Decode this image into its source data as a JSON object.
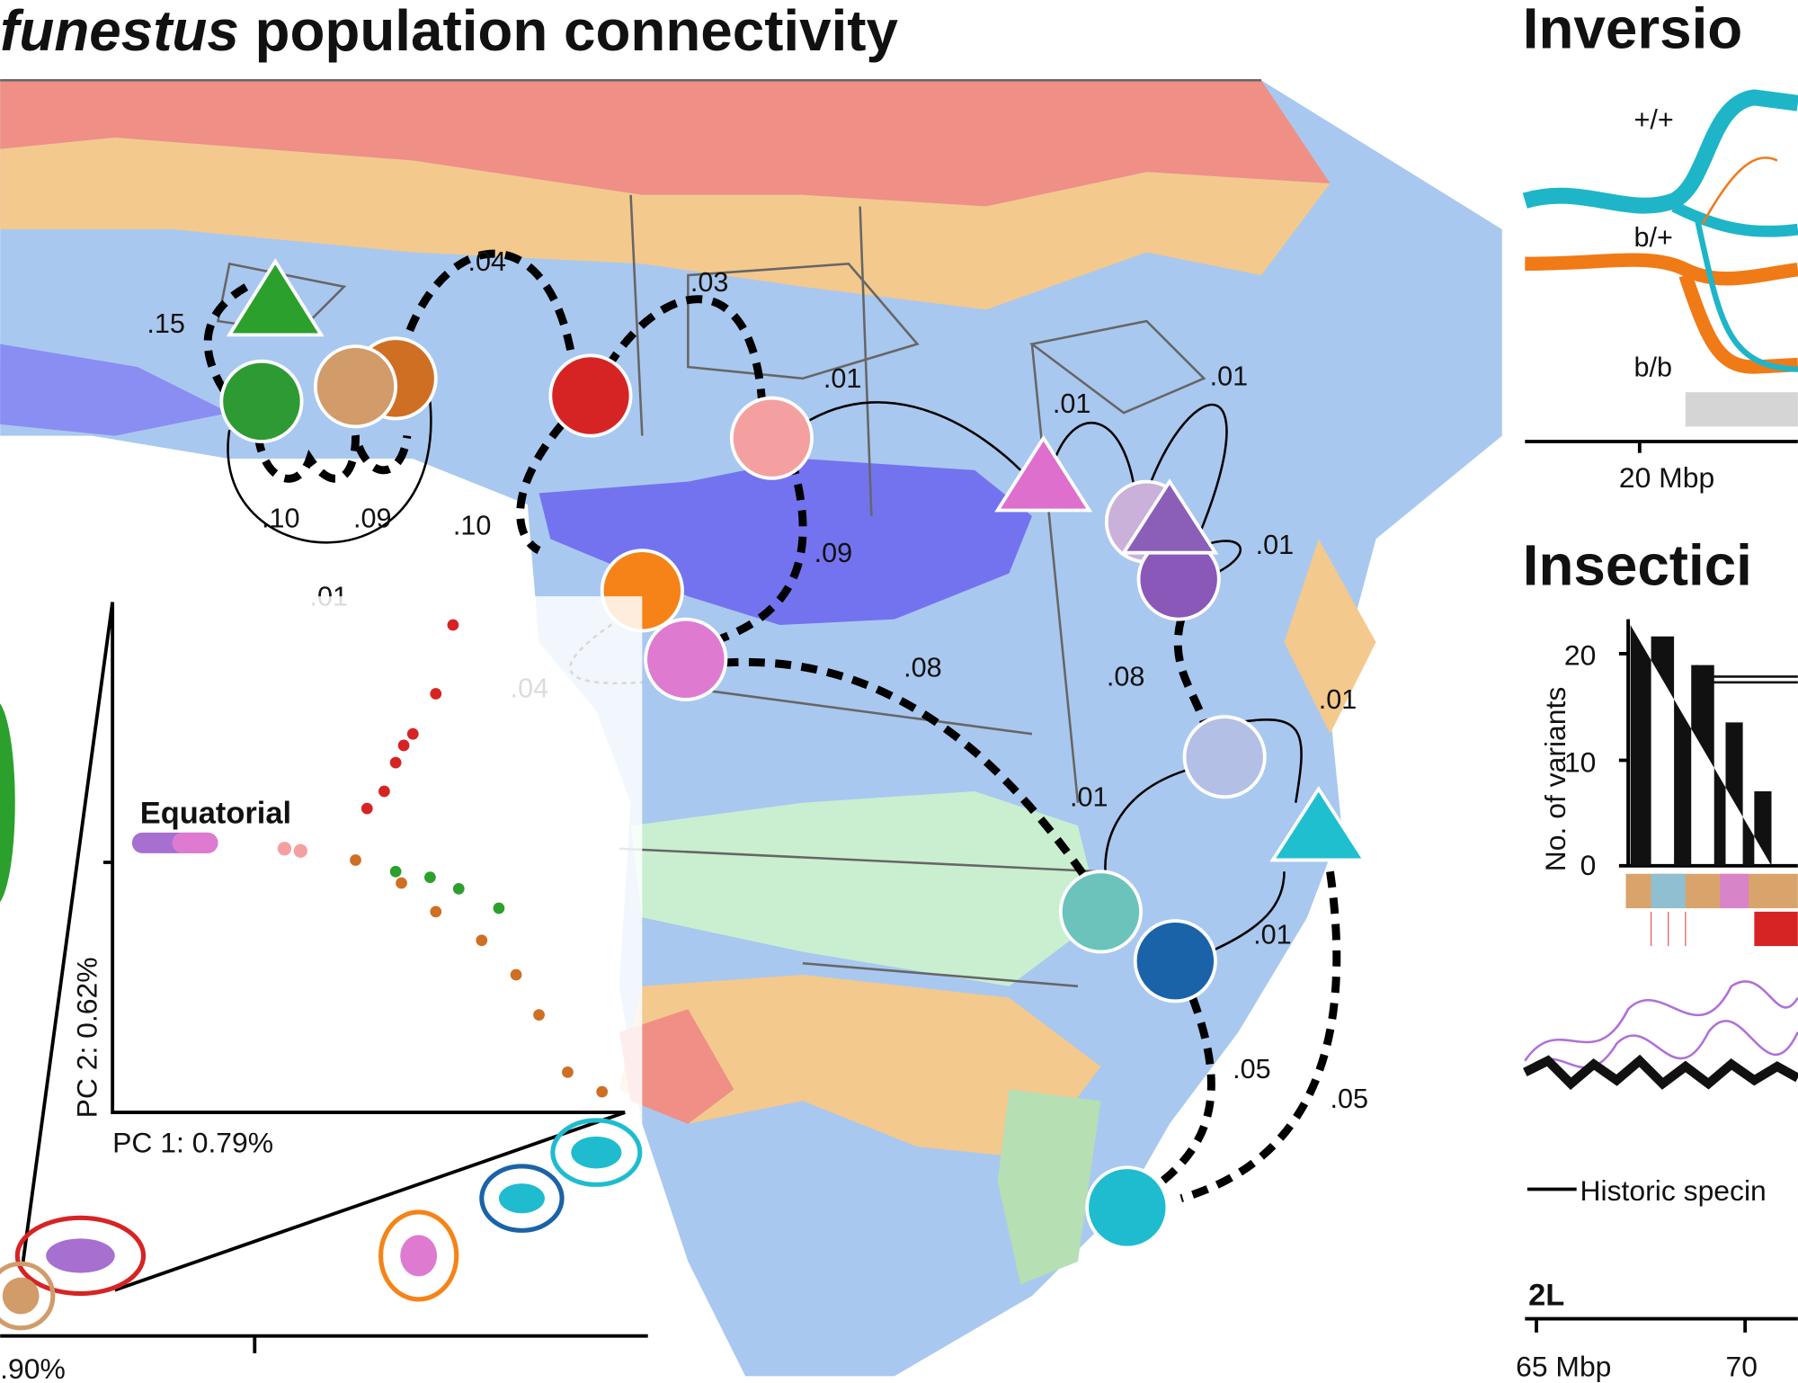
{
  "header": {
    "title_italic": "funestus",
    "title_rest": "population connectivity"
  },
  "map": {
    "edge_labels": [
      ".15",
      ".04",
      ".03",
      ".01",
      ".01",
      ".01",
      ".10",
      ".09",
      ".10",
      ".01",
      ".09",
      ".01",
      ".04",
      ".08",
      ".08",
      ".01",
      ".01",
      ".01",
      ".05",
      ".05"
    ]
  },
  "pca": {
    "cluster_label": "Equatorial",
    "y_axis_label": "PC 2: 0.62%",
    "x_axis_label": "PC 1: 0.79%",
    "outer_axis_label": ".90%"
  },
  "inversion": {
    "title": "Inversio",
    "genotypes": [
      "+/+",
      "b/+",
      "b/b"
    ],
    "x_tick": "20 Mbp"
  },
  "insecticide": {
    "title": "Insectici",
    "y_axis_label": "No. of variants",
    "yticks": [
      20,
      10,
      0
    ],
    "legend": "Historic specin",
    "chromosome": "2L",
    "x_ticks": [
      "65 Mbp",
      "70"
    ]
  }
}
